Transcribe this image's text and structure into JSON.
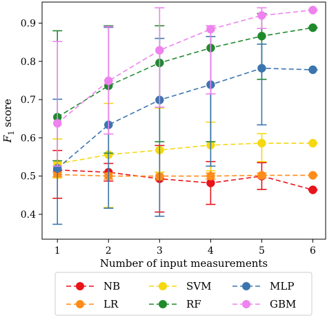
{
  "chart_data": {
    "type": "line",
    "xlabel": "Number of input measurements",
    "ylabel": "F",
    "ylabel_subscript": "1",
    "ylabel_suffix": " score",
    "xlim": [
      0.7,
      6.25
    ],
    "ylim": [
      0.335,
      0.955
    ],
    "xticks": [
      1,
      2,
      3,
      4,
      5,
      6
    ],
    "yticks": [
      0.4,
      0.5,
      0.6,
      0.7,
      0.8,
      0.9
    ],
    "grid": false,
    "legend_position": "below",
    "x": [
      1,
      2,
      3,
      4,
      5,
      6
    ],
    "series": [
      {
        "name": "NB",
        "color": "#e8131b",
        "values": [
          0.516,
          0.51,
          0.493,
          0.482,
          0.5,
          0.464
        ],
        "err_low": [
          0.442,
          0.487,
          0.406,
          0.426,
          0.465,
          0.464
        ],
        "err_high": [
          0.567,
          0.533,
          0.58,
          0.538,
          0.535,
          0.464
        ]
      },
      {
        "name": "LR",
        "color": "#ff8c1a",
        "values": [
          0.504,
          0.5,
          0.5,
          0.5,
          0.502,
          0.502
        ],
        "err_low": [
          0.498,
          0.492,
          0.49,
          0.492,
          0.496,
          0.502
        ],
        "err_high": [
          0.51,
          0.508,
          0.51,
          0.508,
          0.508,
          0.502
        ]
      },
      {
        "name": "SVM",
        "color": "#f5d80f",
        "values": [
          0.532,
          0.556,
          0.568,
          0.581,
          0.586,
          0.586
        ],
        "err_low": [
          0.495,
          0.418,
          0.51,
          0.514,
          0.538,
          0.586
        ],
        "err_high": [
          0.597,
          0.69,
          0.678,
          0.641,
          0.611,
          0.586
        ]
      },
      {
        "name": "RF",
        "color": "#1f8a2c",
        "values": [
          0.654,
          0.736,
          0.796,
          0.835,
          0.866,
          0.888
        ],
        "err_low": [
          0.54,
          0.56,
          0.59,
          0.59,
          0.753,
          0.888
        ],
        "err_high": [
          0.88,
          0.893,
          0.893,
          0.893,
          0.925,
          0.888
        ]
      },
      {
        "name": "MLP",
        "color": "#3b75af",
        "values": [
          0.52,
          0.634,
          0.699,
          0.739,
          0.782,
          0.778
        ],
        "err_low": [
          0.374,
          0.416,
          0.395,
          0.526,
          0.634,
          0.778
        ],
        "err_high": [
          0.701,
          0.889,
          0.86,
          0.865,
          0.845,
          0.778
        ]
      },
      {
        "name": "GBM",
        "color": "#ee82ee",
        "values": [
          0.638,
          0.749,
          0.829,
          0.884,
          0.92,
          0.934
        ],
        "err_low": [
          0.526,
          0.61,
          0.68,
          0.715,
          0.886,
          0.934
        ],
        "err_high": [
          0.852,
          0.891,
          0.94,
          0.893,
          0.94,
          0.934
        ]
      }
    ]
  }
}
